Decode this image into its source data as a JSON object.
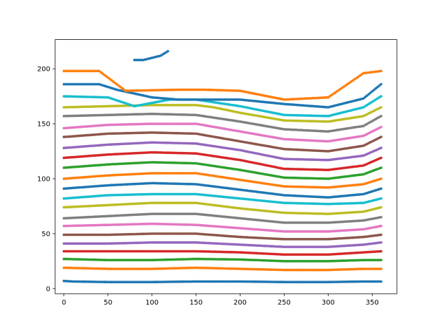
{
  "chart_data": {
    "type": "scatter",
    "title": "",
    "xlabel": "",
    "ylabel": "",
    "xlim": [
      -10,
      378
    ],
    "ylim": [
      -4.6,
      226.6
    ],
    "xticks": [
      0,
      50,
      100,
      150,
      200,
      250,
      300,
      350
    ],
    "yticks": [
      0,
      50,
      100,
      150,
      200
    ],
    "grid": false,
    "legend": "none",
    "marker_size_note": "small circles, every 2 units of x",
    "series": [
      {
        "color": "#1f77b4",
        "points": [
          [
            0,
            7
          ],
          [
            10,
            6.5
          ],
          [
            50,
            6
          ],
          [
            100,
            6
          ],
          [
            150,
            6.5
          ],
          [
            200,
            6.5
          ],
          [
            250,
            6
          ],
          [
            300,
            6
          ],
          [
            340,
            6.5
          ],
          [
            360,
            6.5
          ]
        ]
      },
      {
        "color": "#ff7f0e",
        "points": [
          [
            0,
            19
          ],
          [
            50,
            18
          ],
          [
            100,
            18
          ],
          [
            150,
            19
          ],
          [
            200,
            18
          ],
          [
            250,
            17
          ],
          [
            300,
            17
          ],
          [
            340,
            18
          ],
          [
            360,
            18
          ]
        ]
      },
      {
        "color": "#2ca02c",
        "points": [
          [
            0,
            27
          ],
          [
            50,
            26
          ],
          [
            100,
            26
          ],
          [
            150,
            27
          ],
          [
            200,
            26.5
          ],
          [
            250,
            25
          ],
          [
            300,
            25
          ],
          [
            340,
            26
          ],
          [
            360,
            26
          ]
        ]
      },
      {
        "color": "#d62728",
        "points": [
          [
            0,
            34
          ],
          [
            50,
            34
          ],
          [
            100,
            34
          ],
          [
            150,
            34
          ],
          [
            200,
            33
          ],
          [
            250,
            31
          ],
          [
            300,
            31
          ],
          [
            340,
            33
          ],
          [
            360,
            34
          ]
        ]
      },
      {
        "color": "#9467bd",
        "points": [
          [
            0,
            41
          ],
          [
            50,
            41
          ],
          [
            100,
            42
          ],
          [
            150,
            42
          ],
          [
            200,
            40
          ],
          [
            250,
            38
          ],
          [
            300,
            38
          ],
          [
            340,
            40
          ],
          [
            360,
            42
          ]
        ]
      },
      {
        "color": "#8c564b",
        "points": [
          [
            0,
            49
          ],
          [
            50,
            49
          ],
          [
            100,
            50
          ],
          [
            150,
            50
          ],
          [
            200,
            47
          ],
          [
            250,
            45
          ],
          [
            300,
            45
          ],
          [
            340,
            47
          ],
          [
            360,
            49
          ]
        ]
      },
      {
        "color": "#e377c2",
        "points": [
          [
            0,
            57
          ],
          [
            50,
            58
          ],
          [
            100,
            59
          ],
          [
            150,
            58
          ],
          [
            200,
            55
          ],
          [
            250,
            52
          ],
          [
            300,
            52
          ],
          [
            340,
            54
          ],
          [
            360,
            57
          ]
        ]
      },
      {
        "color": "#7f7f7f",
        "points": [
          [
            0,
            64
          ],
          [
            50,
            66
          ],
          [
            100,
            68
          ],
          [
            150,
            68
          ],
          [
            200,
            64
          ],
          [
            250,
            60
          ],
          [
            300,
            60
          ],
          [
            340,
            62
          ],
          [
            360,
            65
          ]
        ]
      },
      {
        "color": "#bcbd22",
        "points": [
          [
            0,
            74
          ],
          [
            50,
            76
          ],
          [
            100,
            78
          ],
          [
            150,
            78
          ],
          [
            200,
            73
          ],
          [
            250,
            69
          ],
          [
            300,
            68
          ],
          [
            340,
            70
          ],
          [
            360,
            74
          ]
        ]
      },
      {
        "color": "#17becf",
        "points": [
          [
            0,
            82
          ],
          [
            50,
            85
          ],
          [
            100,
            86
          ],
          [
            150,
            86
          ],
          [
            200,
            82
          ],
          [
            250,
            78
          ],
          [
            300,
            77
          ],
          [
            340,
            78
          ],
          [
            360,
            82
          ]
        ]
      },
      {
        "color": "#1f77b4",
        "points": [
          [
            0,
            91
          ],
          [
            50,
            94
          ],
          [
            100,
            96
          ],
          [
            150,
            95
          ],
          [
            200,
            90
          ],
          [
            250,
            85
          ],
          [
            300,
            83
          ],
          [
            340,
            86
          ],
          [
            360,
            91
          ]
        ]
      },
      {
        "color": "#ff7f0e",
        "points": [
          [
            0,
            100
          ],
          [
            50,
            103
          ],
          [
            100,
            105
          ],
          [
            150,
            105
          ],
          [
            200,
            99
          ],
          [
            250,
            93
          ],
          [
            300,
            92
          ],
          [
            340,
            95
          ],
          [
            360,
            100
          ]
        ]
      },
      {
        "color": "#2ca02c",
        "points": [
          [
            0,
            110
          ],
          [
            50,
            113
          ],
          [
            100,
            115
          ],
          [
            150,
            114
          ],
          [
            200,
            108
          ],
          [
            250,
            101
          ],
          [
            300,
            100
          ],
          [
            340,
            104
          ],
          [
            360,
            110
          ]
        ]
      },
      {
        "color": "#d62728",
        "points": [
          [
            0,
            119
          ],
          [
            50,
            122
          ],
          [
            100,
            124
          ],
          [
            150,
            123
          ],
          [
            200,
            117
          ],
          [
            250,
            109
          ],
          [
            300,
            108
          ],
          [
            340,
            112
          ],
          [
            360,
            119
          ]
        ]
      },
      {
        "color": "#9467bd",
        "points": [
          [
            0,
            128
          ],
          [
            50,
            131
          ],
          [
            100,
            133
          ],
          [
            150,
            132
          ],
          [
            200,
            126
          ],
          [
            250,
            118
          ],
          [
            300,
            117
          ],
          [
            340,
            121
          ],
          [
            360,
            128
          ]
        ]
      },
      {
        "color": "#8c564b",
        "points": [
          [
            0,
            138
          ],
          [
            50,
            141
          ],
          [
            100,
            142
          ],
          [
            150,
            141
          ],
          [
            200,
            134
          ],
          [
            250,
            127
          ],
          [
            300,
            125
          ],
          [
            340,
            130
          ],
          [
            360,
            138
          ]
        ]
      },
      {
        "color": "#e377c2",
        "points": [
          [
            0,
            146
          ],
          [
            50,
            149
          ],
          [
            100,
            150
          ],
          [
            150,
            150
          ],
          [
            200,
            143
          ],
          [
            250,
            136
          ],
          [
            300,
            134
          ],
          [
            340,
            139
          ],
          [
            360,
            147
          ]
        ]
      },
      {
        "color": "#7f7f7f",
        "points": [
          [
            0,
            157
          ],
          [
            50,
            158
          ],
          [
            100,
            159
          ],
          [
            150,
            158
          ],
          [
            200,
            152
          ],
          [
            250,
            145
          ],
          [
            300,
            143
          ],
          [
            340,
            148
          ],
          [
            360,
            157
          ]
        ]
      },
      {
        "color": "#bcbd22",
        "points": [
          [
            0,
            165
          ],
          [
            50,
            166
          ],
          [
            100,
            167
          ],
          [
            150,
            167
          ],
          [
            170,
            165
          ],
          [
            200,
            160
          ],
          [
            250,
            153
          ],
          [
            300,
            152
          ],
          [
            340,
            157
          ],
          [
            360,
            165
          ]
        ]
      },
      {
        "color": "#17becf",
        "points": [
          [
            0,
            175
          ],
          [
            50,
            174
          ],
          [
            80,
            166
          ],
          [
            120,
            172
          ],
          [
            150,
            172
          ],
          [
            200,
            166
          ],
          [
            250,
            158
          ],
          [
            300,
            157
          ],
          [
            340,
            165
          ],
          [
            360,
            175
          ]
        ]
      },
      {
        "color": "#1f77b4",
        "points": [
          [
            0,
            186
          ],
          [
            40,
            186
          ],
          [
            60,
            181
          ],
          [
            100,
            174
          ],
          [
            130,
            172
          ],
          [
            160,
            172
          ],
          [
            200,
            172
          ],
          [
            250,
            168
          ],
          [
            300,
            165
          ],
          [
            340,
            173
          ],
          [
            360,
            186
          ]
        ]
      },
      {
        "color": "#ff7f0e",
        "points": [
          [
            0,
            198
          ],
          [
            40,
            198
          ],
          [
            70,
            180
          ],
          [
            130,
            181
          ],
          [
            160,
            181
          ],
          [
            200,
            180
          ],
          [
            250,
            172
          ],
          [
            300,
            174
          ],
          [
            340,
            196
          ],
          [
            360,
            198
          ]
        ]
      },
      {
        "color": "#1f77b4",
        "points": [
          [
            80,
            208
          ],
          [
            90,
            208
          ],
          [
            100,
            210
          ],
          [
            110,
            212
          ],
          [
            118,
            216
          ]
        ]
      }
    ]
  }
}
